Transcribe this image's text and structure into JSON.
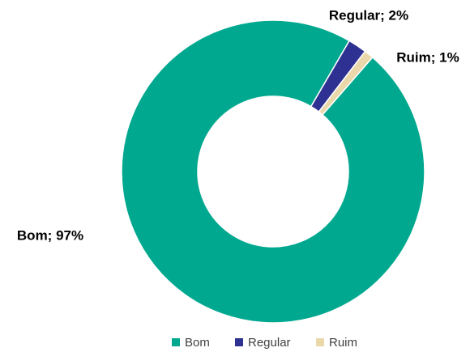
{
  "chart_data": {
    "type": "donut",
    "categories": [
      "Bom",
      "Regular",
      "Ruim"
    ],
    "series": [
      {
        "values": [
          97,
          2,
          1
        ],
        "value_labels": [
          "Bom; 97%",
          "Regular; 2%",
          "Ruim; 1%"
        ],
        "colors": [
          "#00a88f",
          "#2e3192",
          "#ead7aa"
        ]
      }
    ],
    "legend": "bottom"
  }
}
